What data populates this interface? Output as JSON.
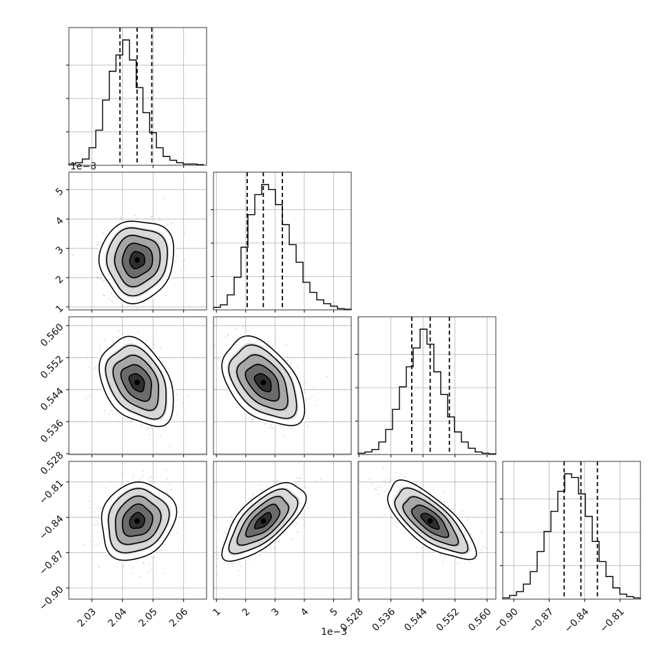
{
  "chart_data": {
    "type": "corner",
    "parameters": [
      {
        "range": [
          2.0225,
          2.0675
        ],
        "ticks": [
          2.03,
          2.04,
          2.05,
          2.06
        ],
        "tick_labels": [
          "2.03",
          "2.04",
          "2.05",
          "2.06"
        ],
        "offset_text": "",
        "quantiles": [
          2.0392,
          2.0448,
          2.0496
        ],
        "histogram": {
          "edges_start": 2.0225,
          "bin_width": 0.0022,
          "counts": [
            1,
            2,
            5,
            14,
            28,
            52,
            75,
            88,
            100,
            84,
            62,
            42,
            26,
            14,
            7,
            4,
            2,
            1,
            1,
            0.5
          ]
        }
      },
      {
        "range": [
          0.9,
          5.6
        ],
        "ticks": [
          1,
          2,
          3,
          4,
          5
        ],
        "tick_labels": [
          "1",
          "2",
          "3",
          "4",
          "5"
        ],
        "offset_text": "1e−3",
        "quantiles": [
          2.05,
          2.6,
          3.25
        ],
        "histogram": {
          "edges_start": 0.9,
          "bin_width": 0.235,
          "counts": [
            2,
            4,
            12,
            26,
            50,
            76,
            92,
            100,
            96,
            84,
            68,
            52,
            38,
            22,
            14,
            8,
            5,
            3,
            1,
            0.5
          ]
        }
      },
      {
        "range": [
          0.5278,
          0.5622
        ],
        "ticks": [
          0.528,
          0.536,
          0.544,
          0.552,
          0.56
        ],
        "tick_labels": [
          "0.528",
          "0.536",
          "0.544",
          "0.552",
          "0.560"
        ],
        "offset_text": "",
        "quantiles": [
          0.5412,
          0.5458,
          0.5506
        ],
        "histogram": {
          "edges_start": 0.5278,
          "bin_width": 0.00172,
          "counts": [
            1,
            2,
            4,
            10,
            20,
            36,
            54,
            70,
            85,
            100,
            88,
            66,
            48,
            30,
            18,
            10,
            5,
            2,
            1,
            0.5
          ]
        }
      },
      {
        "range": [
          -0.9094,
          -0.7926
        ],
        "ticks": [
          -0.9,
          -0.87,
          -0.84,
          -0.81
        ],
        "tick_labels": [
          "−0.90",
          "−0.87",
          "−0.84",
          "−0.81"
        ],
        "offset_text": "",
        "quantiles": [
          -0.8573,
          -0.8431,
          -0.8291
        ],
        "histogram": {
          "edges_start": -0.9094,
          "bin_width": 0.00584,
          "counts": [
            1,
            3,
            6,
            12,
            22,
            38,
            54,
            70,
            86,
            100,
            97,
            84,
            66,
            46,
            30,
            18,
            9,
            4,
            2,
            1
          ]
        }
      }
    ],
    "pairs": [
      {
        "x": 0,
        "y": 1,
        "rho": 0.05
      },
      {
        "x": 0,
        "y": 2,
        "rho": -0.35
      },
      {
        "x": 1,
        "y": 2,
        "rho": -0.45
      },
      {
        "x": 0,
        "y": 3,
        "rho": 0.15
      },
      {
        "x": 1,
        "y": 3,
        "rho": 0.68
      },
      {
        "x": 2,
        "y": 3,
        "rho": -0.72
      }
    ],
    "contour_levels_sigma": [
      0.5,
      1.0,
      1.5,
      2.0
    ],
    "grid": true,
    "colors": {
      "line": "#000000",
      "grid": "#b0b0b0",
      "samples": "#7f7f7f"
    }
  }
}
